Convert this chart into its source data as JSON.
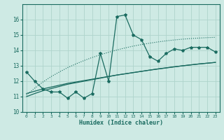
{
  "xlabel": "Humidex (Indice chaleur)",
  "bg_color": "#ceeae4",
  "line_color": "#1a6b60",
  "grid_color": "#aed4cc",
  "x_values": [
    0,
    1,
    2,
    3,
    4,
    5,
    6,
    7,
    8,
    9,
    10,
    11,
    12,
    13,
    14,
    15,
    16,
    17,
    18,
    19,
    20,
    21,
    22,
    23
  ],
  "y_main": [
    12.6,
    12.0,
    11.5,
    11.3,
    11.3,
    10.9,
    11.3,
    10.9,
    11.2,
    13.8,
    12.0,
    16.2,
    16.3,
    15.0,
    14.7,
    13.6,
    13.3,
    13.8,
    14.1,
    14.0,
    14.2,
    14.2,
    14.2,
    13.9
  ],
  "y_reg1": [
    11.2,
    11.35,
    11.5,
    11.62,
    11.74,
    11.86,
    11.95,
    12.04,
    12.13,
    12.22,
    12.31,
    12.4,
    12.48,
    12.56,
    12.64,
    12.72,
    12.79,
    12.86,
    12.93,
    13.0,
    13.06,
    13.12,
    13.17,
    13.22
  ],
  "y_reg2": [
    11.0,
    11.2,
    11.38,
    11.52,
    11.66,
    11.8,
    11.9,
    12.0,
    12.1,
    12.2,
    12.3,
    12.4,
    12.48,
    12.56,
    12.64,
    12.72,
    12.8,
    12.87,
    12.94,
    13.0,
    13.06,
    13.12,
    13.17,
    13.22
  ],
  "y_dotted": [
    11.1,
    11.55,
    11.95,
    12.3,
    12.6,
    12.88,
    13.12,
    13.34,
    13.54,
    13.72,
    13.88,
    14.03,
    14.16,
    14.28,
    14.38,
    14.47,
    14.55,
    14.62,
    14.68,
    14.73,
    14.77,
    14.8,
    14.83,
    14.85
  ],
  "ylim": [
    10,
    17
  ],
  "xlim": [
    -0.5,
    23.5
  ],
  "yticks": [
    10,
    11,
    12,
    13,
    14,
    15,
    16
  ],
  "xticks": [
    0,
    1,
    2,
    3,
    4,
    5,
    6,
    7,
    8,
    9,
    10,
    11,
    12,
    13,
    14,
    15,
    16,
    17,
    18,
    19,
    20,
    21,
    22,
    23
  ],
  "xtick_labels": [
    "0",
    "1",
    "2",
    "3",
    "4",
    "5",
    "6",
    "7",
    "8",
    "9",
    "10",
    "11",
    "12",
    "13",
    "14",
    "15",
    "16",
    "17",
    "18",
    "19",
    "20",
    "21",
    "22",
    "23"
  ]
}
